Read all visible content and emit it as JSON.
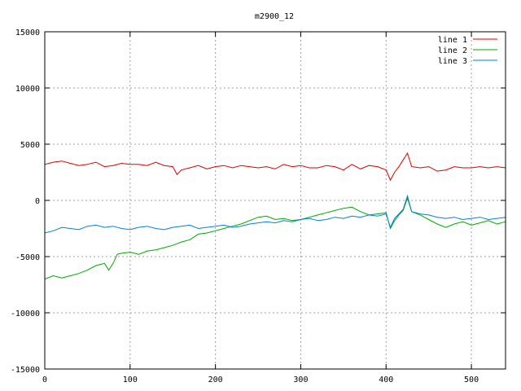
{
  "chart_data": {
    "type": "line",
    "title": "m2900_12",
    "xlabel": "",
    "ylabel": "",
    "xlim": [
      0,
      540
    ],
    "ylim": [
      -15000,
      15000
    ],
    "xticks": [
      0,
      100,
      200,
      300,
      400,
      500
    ],
    "yticks": [
      -15000,
      -10000,
      -5000,
      0,
      5000,
      10000,
      15000
    ],
    "grid": true,
    "legend_position": "top-right",
    "series": [
      {
        "name": "line 1",
        "color": "#dd0000",
        "x": [
          0,
          10,
          20,
          30,
          40,
          50,
          60,
          70,
          80,
          90,
          100,
          110,
          120,
          130,
          140,
          150,
          155,
          160,
          170,
          180,
          190,
          200,
          210,
          220,
          230,
          240,
          250,
          260,
          270,
          280,
          290,
          300,
          310,
          320,
          330,
          340,
          350,
          360,
          370,
          380,
          390,
          400,
          405,
          410,
          415,
          420,
          425,
          430,
          440,
          450,
          460,
          470,
          480,
          490,
          500,
          510,
          520,
          530,
          540
        ],
        "y": [
          3200,
          3400,
          3500,
          3300,
          3100,
          3200,
          3400,
          3000,
          3100,
          3300,
          3200,
          3200,
          3100,
          3400,
          3100,
          3000,
          2300,
          2700,
          2900,
          3100,
          2800,
          3000,
          3100,
          2900,
          3100,
          3000,
          2900,
          3000,
          2800,
          3200,
          3000,
          3100,
          2900,
          2900,
          3100,
          3000,
          2700,
          3200,
          2800,
          3100,
          3000,
          2700,
          1800,
          2500,
          3000,
          3600,
          4200,
          3000,
          2900,
          3000,
          2600,
          2700,
          3000,
          2900,
          2900,
          3000,
          2900,
          3000,
          2900
        ]
      },
      {
        "name": "line 2",
        "color": "#00aa00",
        "x": [
          0,
          10,
          20,
          30,
          40,
          50,
          60,
          70,
          75,
          80,
          85,
          90,
          100,
          110,
          120,
          130,
          140,
          150,
          160,
          170,
          180,
          190,
          200,
          210,
          220,
          230,
          240,
          250,
          260,
          270,
          280,
          290,
          300,
          310,
          320,
          330,
          340,
          350,
          360,
          370,
          380,
          390,
          400,
          405,
          410,
          415,
          420,
          425,
          430,
          440,
          450,
          460,
          470,
          480,
          490,
          500,
          510,
          520,
          530,
          540
        ],
        "y": [
          -7000,
          -6700,
          -6900,
          -6700,
          -6500,
          -6200,
          -5800,
          -5600,
          -6200,
          -5600,
          -4800,
          -4700,
          -4600,
          -4800,
          -4500,
          -4400,
          -4200,
          -4000,
          -3700,
          -3500,
          -3000,
          -2900,
          -2700,
          -2500,
          -2300,
          -2100,
          -1800,
          -1500,
          -1400,
          -1700,
          -1600,
          -1800,
          -1700,
          -1500,
          -1300,
          -1100,
          -900,
          -700,
          -600,
          -1000,
          -1300,
          -1200,
          -1100,
          -2500,
          -1800,
          -1300,
          -900,
          200,
          -1000,
          -1300,
          -1700,
          -2100,
          -2400,
          -2100,
          -1900,
          -2200,
          -2000,
          -1800,
          -2100,
          -1900
        ]
      },
      {
        "name": "line 3",
        "color": "#0080dd",
        "x": [
          0,
          10,
          20,
          30,
          40,
          50,
          60,
          70,
          80,
          90,
          100,
          110,
          120,
          130,
          140,
          150,
          160,
          170,
          180,
          190,
          200,
          210,
          220,
          230,
          240,
          250,
          260,
          270,
          280,
          290,
          300,
          310,
          320,
          330,
          340,
          350,
          360,
          370,
          380,
          390,
          400,
          405,
          410,
          415,
          420,
          425,
          430,
          440,
          450,
          460,
          470,
          480,
          490,
          500,
          510,
          520,
          530,
          540
        ],
        "y": [
          -2900,
          -2700,
          -2400,
          -2500,
          -2600,
          -2300,
          -2200,
          -2400,
          -2300,
          -2500,
          -2600,
          -2400,
          -2300,
          -2500,
          -2600,
          -2400,
          -2300,
          -2200,
          -2500,
          -2400,
          -2300,
          -2200,
          -2400,
          -2300,
          -2100,
          -2000,
          -1900,
          -2000,
          -1800,
          -1900,
          -1700,
          -1600,
          -1800,
          -1700,
          -1500,
          -1600,
          -1400,
          -1500,
          -1300,
          -1400,
          -1200,
          -2400,
          -1600,
          -1200,
          -800,
          400,
          -1000,
          -1200,
          -1300,
          -1500,
          -1600,
          -1500,
          -1700,
          -1600,
          -1500,
          -1700,
          -1600,
          -1500
        ]
      }
    ]
  }
}
